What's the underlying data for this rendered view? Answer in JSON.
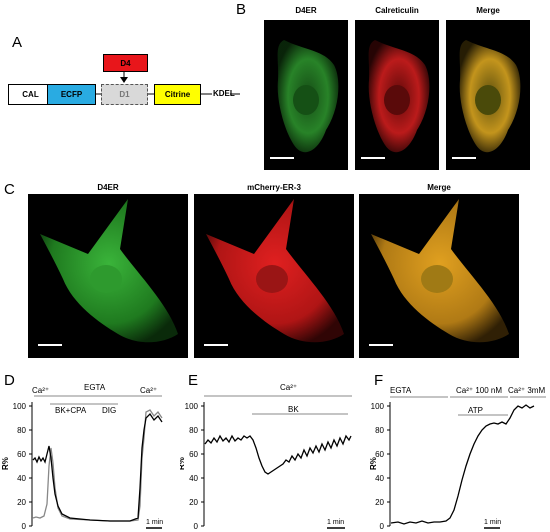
{
  "panels": {
    "A": "A",
    "B": "B",
    "C": "C",
    "D": "D",
    "E": "E",
    "F": "F"
  },
  "construct": {
    "cal": "CAL",
    "ecfp": "ECFP",
    "d1": "D1",
    "d4": "D4",
    "citrine": "Citrine",
    "kdel": "KDEL",
    "colors": {
      "ecfp": "#29abe2",
      "d4": "#e8161b",
      "citrine": "#ffff00",
      "d1": "#d9d9d9"
    }
  },
  "panelB": {
    "titles": [
      "D4ER",
      "Calreticulin",
      "Merge"
    ]
  },
  "panelC": {
    "titles": [
      "D4ER",
      "mCherry-ER-3",
      "Merge"
    ]
  },
  "panelD": {
    "top_labels": [
      "Ca²⁺",
      "EGTA",
      "Ca²⁺"
    ],
    "bars": [
      "BK+CPA",
      "DIG"
    ],
    "ylabel": "R%",
    "yticks": [
      "0",
      "20",
      "40",
      "60",
      "80",
      "100"
    ],
    "scale": "1 min"
  },
  "panelE": {
    "top_labels": [
      "Ca²⁺"
    ],
    "bars": [
      "BK"
    ],
    "ylabel": "R%",
    "yticks": [
      "0",
      "20",
      "40",
      "60",
      "80",
      "100"
    ],
    "scale": "1 min"
  },
  "panelF": {
    "top_labels": [
      "EGTA",
      "Ca²⁺ 100 nM",
      "Ca²⁺ 3mM"
    ],
    "bars": [
      "ATP"
    ],
    "ylabel": "R%",
    "yticks": [
      "0",
      "20",
      "40",
      "60",
      "80",
      "100"
    ],
    "scale": "1 min"
  }
}
